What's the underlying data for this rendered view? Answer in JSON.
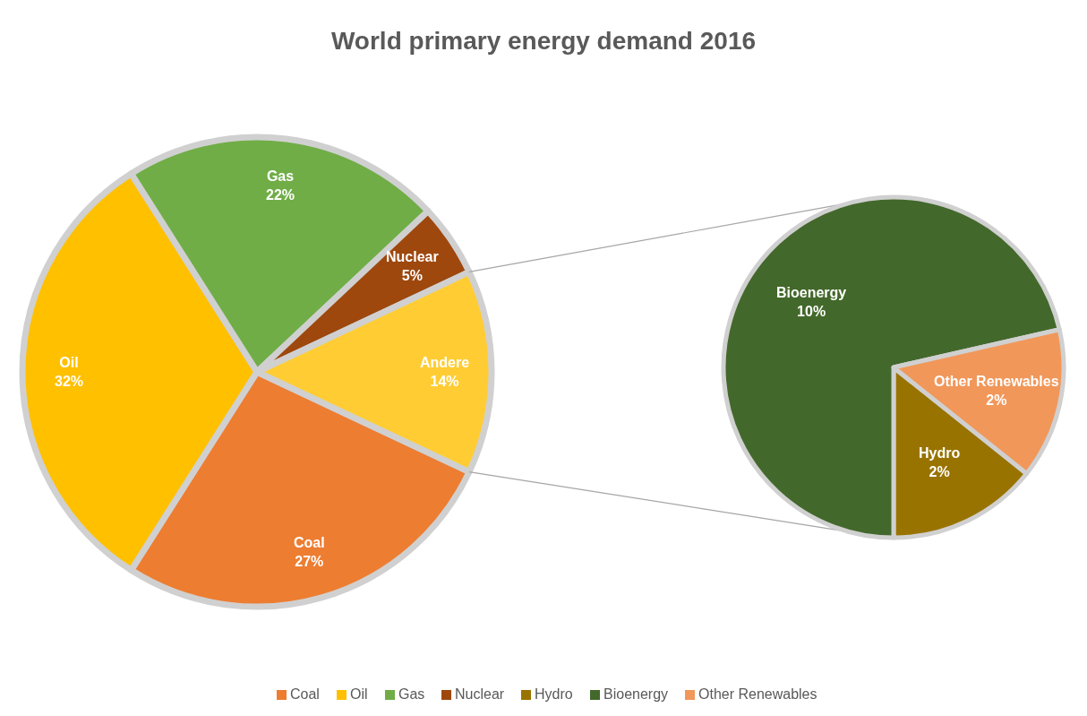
{
  "chart_data": [
    {
      "type": "pie",
      "title": "World primary energy demand 2016",
      "categories": [
        "Coal",
        "Oil",
        "Gas",
        "Nuclear",
        "Andere"
      ],
      "values": [
        27,
        32,
        22,
        5,
        14
      ],
      "colors": [
        "#ed7d31",
        "#ffc000",
        "#70ad47",
        "#9e480e",
        "#ffcd33"
      ],
      "value_labels": [
        "27%",
        "32%",
        "22%",
        "5%",
        "14%"
      ],
      "legend": "bottom"
    },
    {
      "type": "pie",
      "categories": [
        "Hydro",
        "Bioenergy",
        "Other Renewables"
      ],
      "values": [
        2,
        10,
        2
      ],
      "colors": [
        "#997300",
        "#43682b",
        "#f1975a"
      ],
      "value_labels": [
        "2%",
        "10%",
        "2%"
      ],
      "legend": "bottom"
    }
  ]
}
